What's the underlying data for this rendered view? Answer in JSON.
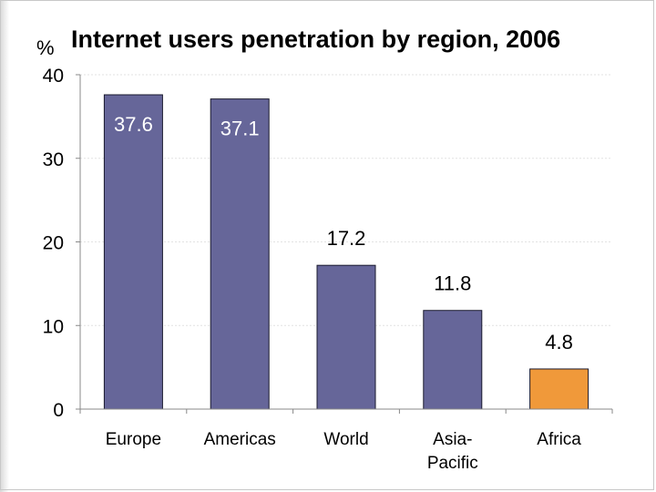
{
  "chart_data": {
    "type": "bar",
    "title": "Internet users penetration by region, 2006",
    "ylabel": "%",
    "xlabel": "",
    "ylim": [
      0,
      40
    ],
    "yticks": [
      0,
      10,
      20,
      30,
      40
    ],
    "grid": true,
    "categories": [
      "Europe",
      "Americas",
      "World",
      "Asia-\nPacific",
      "Africa"
    ],
    "values": [
      37.6,
      37.1,
      17.2,
      11.8,
      4.8
    ],
    "labels": [
      "37.6",
      "37.1",
      "17.2",
      "11.8",
      "4.8"
    ],
    "label_inside": [
      true,
      true,
      false,
      false,
      false
    ],
    "bar_colors": [
      "#666699",
      "#666699",
      "#666699",
      "#666699",
      "#F0993A"
    ],
    "label_colors": [
      "#ffffff",
      "#ffffff",
      "#000000",
      "#000000",
      "#000000"
    ]
  }
}
